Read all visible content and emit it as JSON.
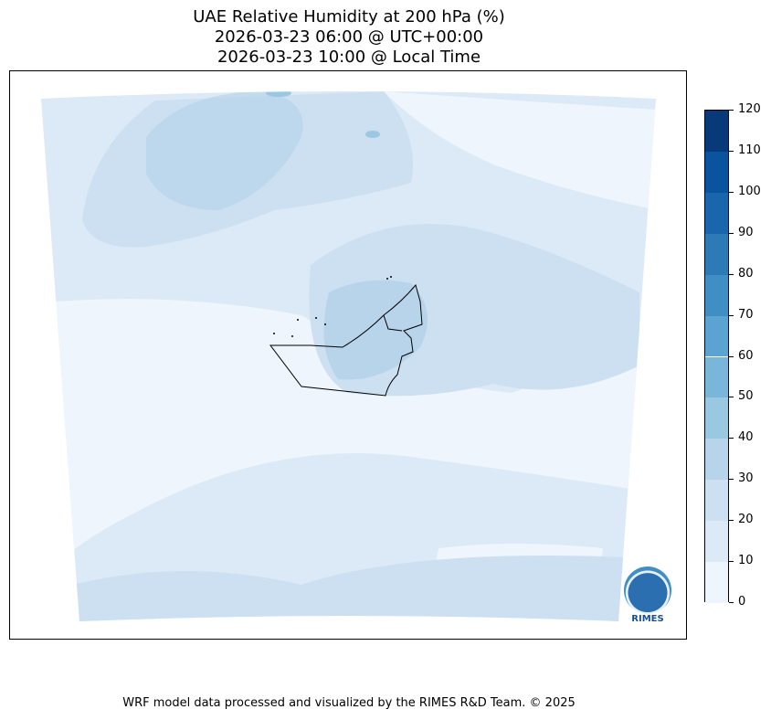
{
  "title": {
    "line1": "UAE Relative Humidity at 200 hPa (%)",
    "line2": "2026-03-23 06:00 @ UTC+00:00",
    "line3": "2026-03-23 10:00 @ Local Time"
  },
  "colorbar": {
    "ticks": [
      "0",
      "10",
      "20",
      "30",
      "40",
      "50",
      "60",
      "70",
      "80",
      "90",
      "100",
      "110",
      "120"
    ],
    "colors": [
      "#eef5fc",
      "#dce9f6",
      "#cde0f1",
      "#b7d4ea",
      "#9ac8e0",
      "#7ab6d9",
      "#5ba3d0",
      "#3f8fc5",
      "#2c7bb6",
      "#1a66ad",
      "#0a539e",
      "#083a7a"
    ]
  },
  "logo": {
    "text": "RIMES"
  },
  "footer": "WRF model data processed and visualized by the RIMES R&D Team. © 2025"
}
